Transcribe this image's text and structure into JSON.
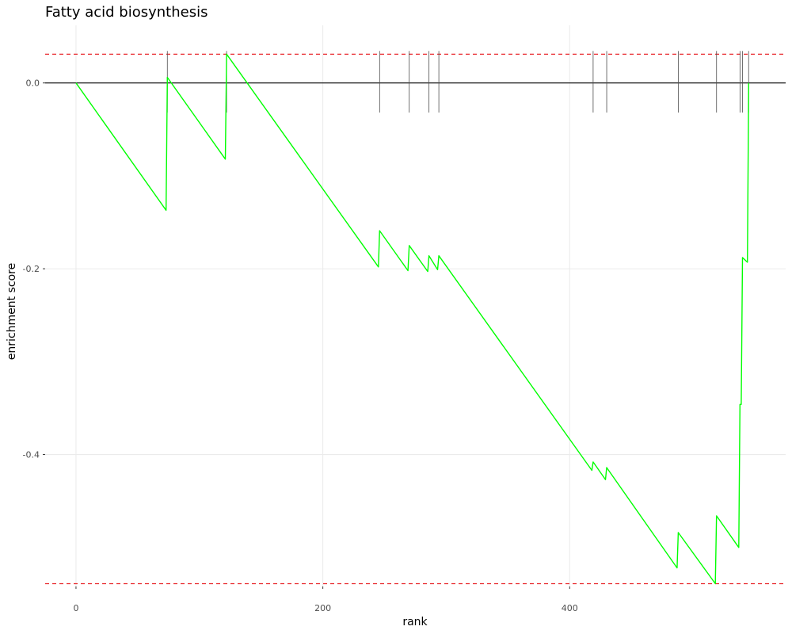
{
  "chart_data": {
    "type": "line",
    "title": "Fatty acid biosynthesis",
    "xlabel": "rank",
    "ylabel": "enrichment score",
    "xlim": [
      -25,
      575
    ],
    "ylim": [
      -0.542,
      0.062
    ],
    "x_ticks": [
      0,
      200,
      400
    ],
    "y_ticks": [
      0.0,
      -0.2,
      -0.4
    ],
    "x_tick_labels": [
      "0",
      "200",
      "400"
    ],
    "y_tick_labels": [
      "0.0",
      "-0.2",
      "-0.4"
    ],
    "grid": true,
    "zero_line": 0.0,
    "threshold_lines": [
      0.031,
      -0.539
    ],
    "gene_hits": [
      74,
      122,
      246,
      270,
      286,
      294,
      419,
      430,
      488,
      519,
      538,
      540,
      545
    ],
    "series": [
      {
        "color": "#00ff00",
        "x": [
          0,
          73,
          74,
          121,
          122,
          245,
          246,
          269,
          270,
          285,
          286,
          293,
          294,
          418,
          419,
          429,
          430,
          487,
          488,
          518,
          519,
          537,
          538,
          539,
          540,
          544,
          545
        ],
        "y": [
          0.0,
          -0.137,
          0.006,
          -0.082,
          0.031,
          -0.198,
          -0.159,
          -0.202,
          -0.175,
          -0.203,
          -0.186,
          -0.201,
          -0.186,
          -0.417,
          -0.408,
          -0.427,
          -0.414,
          -0.522,
          -0.484,
          -0.539,
          -0.466,
          -0.5,
          -0.346,
          -0.346,
          -0.188,
          -0.193,
          0.0
        ]
      }
    ]
  }
}
